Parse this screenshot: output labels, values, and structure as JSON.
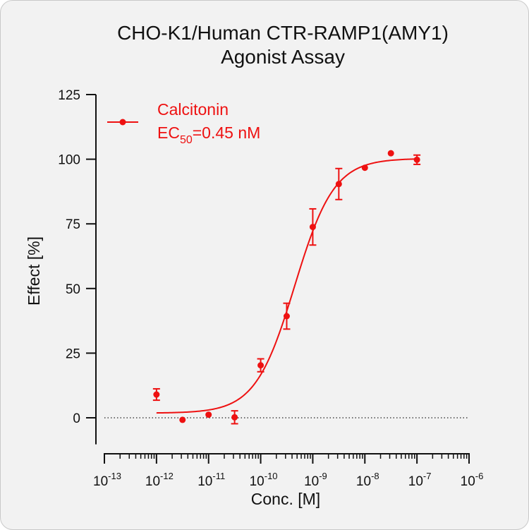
{
  "chart_data": {
    "type": "scatter",
    "title_line1": "CHO-K1/Human CTR-RAMP1(AMY1)",
    "title_line2": "Agonist Assay",
    "xlabel": "Conc. [M]",
    "ylabel": "Effect  [%]",
    "x_scale": "log",
    "xlim": [
      1e-13,
      1e-06
    ],
    "ylim": [
      -10,
      125
    ],
    "y_ticks": [
      0,
      25,
      50,
      75,
      100,
      125
    ],
    "x_tick_exponents": [
      "-13",
      "-12",
      "-11",
      "-10",
      "-9",
      "-8",
      "-7",
      "-6"
    ],
    "x_tick_base": "10",
    "reference_line": {
      "y": 0,
      "style": "dotted"
    },
    "series": [
      {
        "name": "Calcitonin",
        "color": "#ee1111",
        "x": [
          1e-12,
          3.16e-12,
          1e-11,
          3.16e-11,
          1e-10,
          3.16e-10,
          1e-09,
          3.16e-09,
          1e-08,
          3.16e-08,
          1e-07
        ],
        "y": [
          9,
          -0.8,
          1.2,
          0.2,
          20.3,
          39.3,
          73.8,
          90.4,
          96.7,
          102.3,
          99.8
        ],
        "error": [
          2.2,
          0,
          0,
          2.5,
          2.5,
          5,
          7,
          6,
          0,
          0,
          1.8
        ],
        "fit": {
          "model": "4PL",
          "bottom": 1.8,
          "top": 100.3,
          "ec50": 4.5e-10,
          "hill": 1.15
        }
      }
    ],
    "legend": {
      "name": "Calcitonin",
      "ec50_prefix": "EC",
      "ec50_sub": "50",
      "ec50_value": "=0.45 nM",
      "position": "top-left"
    }
  }
}
